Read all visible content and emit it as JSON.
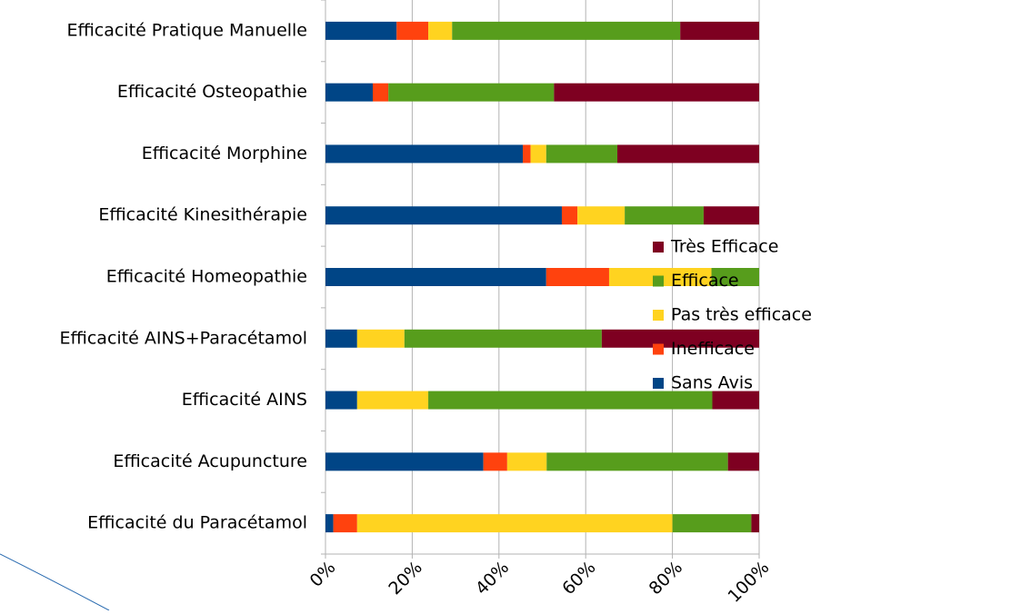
{
  "chart_data": {
    "type": "stacked_barh",
    "categories": [
      "Efficacité Pratique Manuelle",
      "Efficacité Osteopathie",
      "Efficacité Morphine",
      "Efficacité Kinesithérapie",
      "Efficacité Homeopathie",
      "Efficacité AINS+Paracétamol",
      "Efficacité  AINS",
      "Efficacité Acupuncture",
      "Efficacité du Paracétamol"
    ],
    "series": [
      {
        "name": "Sans Avis",
        "color": "#004586",
        "values": [
          16.4,
          10.9,
          45.5,
          54.5,
          50.9,
          7.3,
          7.3,
          36.4,
          1.8
        ]
      },
      {
        "name": "Inefficace",
        "color": "#ff420e",
        "values": [
          7.3,
          3.6,
          1.8,
          3.6,
          14.5,
          0,
          0,
          5.5,
          5.5
        ]
      },
      {
        "name": "Pas très efficace",
        "color": "#ffd320",
        "values": [
          5.5,
          0,
          3.6,
          10.9,
          23.6,
          10.9,
          16.4,
          9.1,
          72.7
        ]
      },
      {
        "name": "Efficace",
        "color": "#579d1c",
        "values": [
          52.6,
          38.2,
          16.4,
          18.2,
          11,
          45.5,
          65.5,
          41.8,
          18.2
        ]
      },
      {
        "name": "Très Efficace",
        "color": "#7e0021",
        "values": [
          18.2,
          47.3,
          32.7,
          12.8,
          0,
          36.3,
          10.8,
          7.2,
          1.8
        ]
      }
    ],
    "xlim": [
      0,
      100
    ],
    "xticks": [
      {
        "value": 0,
        "label": "0%"
      },
      {
        "value": 20,
        "label": "20%"
      },
      {
        "value": 40,
        "label": "40%"
      },
      {
        "value": 60,
        "label": "60%"
      },
      {
        "value": 80,
        "label": "80%"
      },
      {
        "value": 100,
        "label": "100%"
      }
    ],
    "grid": true
  }
}
